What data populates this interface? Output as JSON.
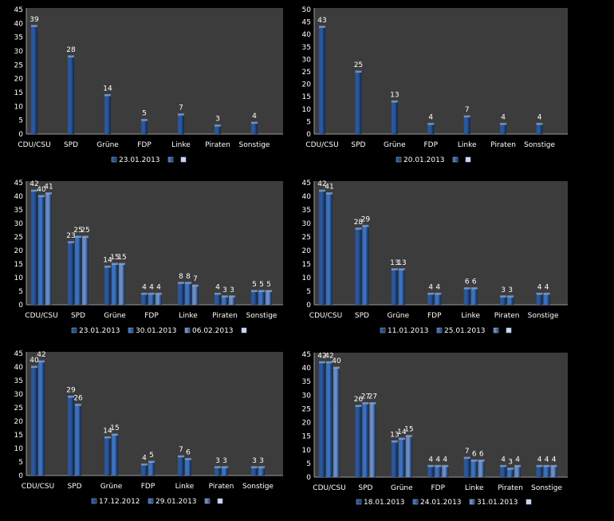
{
  "chart_data": [
    {
      "type": "bar",
      "categories": [
        "CDU/CSU",
        "SPD",
        "Grüne",
        "FDP",
        "Linke",
        "Piraten",
        "Sonstige"
      ],
      "ylim": [
        0,
        45
      ],
      "yticks": [
        0,
        5,
        10,
        15,
        20,
        25,
        30,
        35,
        40,
        45
      ],
      "legend_position": "bottom",
      "legend_extra_markers": 2,
      "series": [
        {
          "name": "23.01.2013",
          "values": [
            39,
            28,
            14,
            5,
            7,
            3,
            4
          ]
        }
      ]
    },
    {
      "type": "bar",
      "categories": [
        "CDU/CSU",
        "SPD",
        "Grüne",
        "FDP",
        "Linke",
        "Piraten",
        "Sonstige"
      ],
      "ylim": [
        0,
        50
      ],
      "yticks": [
        0,
        5,
        10,
        15,
        20,
        25,
        30,
        35,
        40,
        45,
        50
      ],
      "legend_position": "bottom",
      "legend_extra_markers": 2,
      "series": [
        {
          "name": "20.01.2013",
          "values": [
            43,
            25,
            13,
            4,
            7,
            4,
            4
          ]
        }
      ]
    },
    {
      "type": "bar",
      "categories": [
        "CDU/CSU",
        "SPD",
        "Grüne",
        "FDP",
        "Linke",
        "Piraten",
        "Sonstige"
      ],
      "ylim": [
        0,
        45
      ],
      "yticks": [
        0,
        5,
        10,
        15,
        20,
        25,
        30,
        35,
        40,
        45
      ],
      "legend_position": "bottom",
      "legend_extra_markers": 1,
      "series": [
        {
          "name": "23.01.2013",
          "values": [
            42,
            23,
            14,
            4,
            8,
            4,
            5
          ]
        },
        {
          "name": "30.01.2013",
          "values": [
            40,
            25,
            15,
            4,
            8,
            3,
            5
          ]
        },
        {
          "name": "06.02.2013",
          "values": [
            41,
            25,
            15,
            4,
            7,
            3,
            5
          ]
        }
      ]
    },
    {
      "type": "bar",
      "categories": [
        "CDU/CSU",
        "SPD",
        "Grüne",
        "FDP",
        "Linke",
        "Piraten",
        "Sonstige"
      ],
      "ylim": [
        0,
        45
      ],
      "yticks": [
        0,
        5,
        10,
        15,
        20,
        25,
        30,
        35,
        40,
        45
      ],
      "legend_position": "bottom",
      "legend_extra_markers": 2,
      "series": [
        {
          "name": "11.01.2013",
          "values": [
            42,
            28,
            13,
            4,
            6,
            3,
            4
          ]
        },
        {
          "name": "25.01.2013",
          "values": [
            41,
            29,
            13,
            4,
            6,
            3,
            4
          ]
        }
      ]
    },
    {
      "type": "bar",
      "categories": [
        "CDU/CSU",
        "SPD",
        "Grüne",
        "FDP",
        "Linke",
        "Piraten",
        "Sonstige"
      ],
      "ylim": [
        0,
        45
      ],
      "yticks": [
        0,
        5,
        10,
        15,
        20,
        25,
        30,
        35,
        40,
        45
      ],
      "legend_position": "bottom",
      "legend_extra_markers": 2,
      "series": [
        {
          "name": "17.12.2012",
          "values": [
            40,
            29,
            14,
            4,
            7,
            3,
            3
          ]
        },
        {
          "name": "29.01.2013",
          "values": [
            42,
            26,
            15,
            5,
            6,
            3,
            3
          ]
        }
      ]
    },
    {
      "type": "bar",
      "categories": [
        "CDU/CSU",
        "SPD",
        "Grüne",
        "FDP",
        "Linke",
        "Piraten",
        "Sonstige"
      ],
      "ylim": [
        0,
        45
      ],
      "yticks": [
        0,
        5,
        10,
        15,
        20,
        25,
        30,
        35,
        40,
        45
      ],
      "legend_position": "bottom",
      "legend_extra_markers": 1,
      "series": [
        {
          "name": "18.01.2013",
          "values": [
            42,
            26,
            13,
            4,
            7,
            4,
            4
          ]
        },
        {
          "name": "24.01.2013",
          "values": [
            42,
            27,
            14,
            4,
            6,
            3,
            4
          ]
        },
        {
          "name": "31.01.2013",
          "values": [
            40,
            27,
            15,
            4,
            6,
            4,
            4
          ]
        }
      ]
    }
  ],
  "colors": {
    "plot_bg": "#3c3c3c",
    "series": [
      "#2a5aa3",
      "#3d76c8",
      "#6d94d0"
    ],
    "text": "#ffffff",
    "axis": "#9a9a9a"
  }
}
